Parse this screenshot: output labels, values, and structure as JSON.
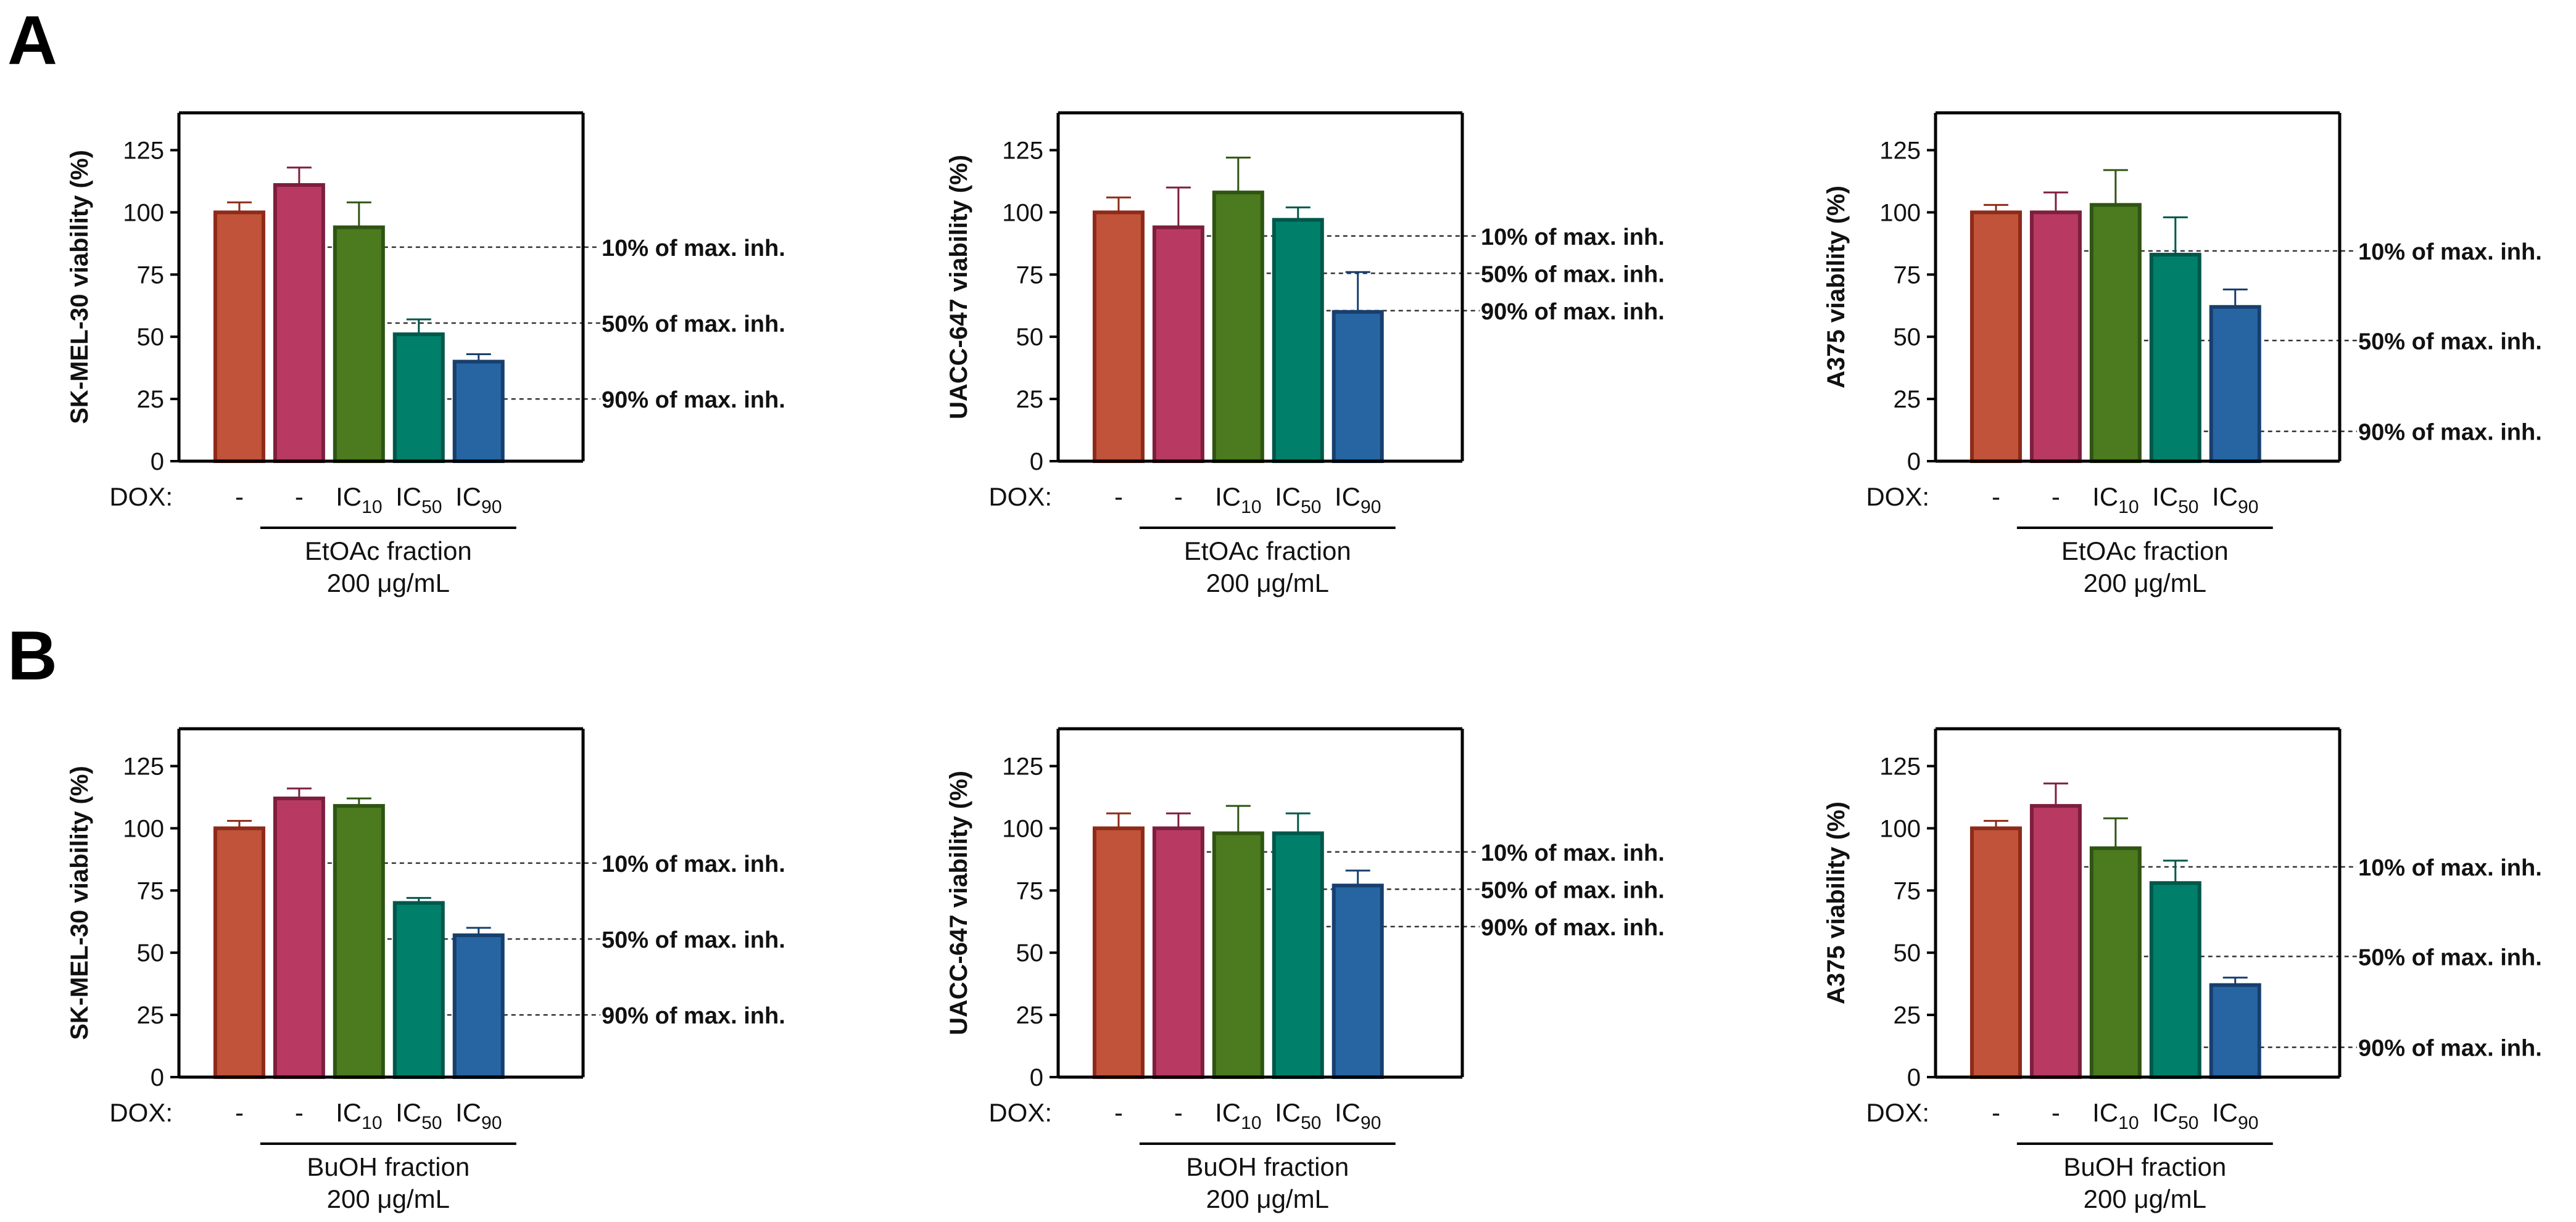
{
  "panel_labels": {
    "a": "A",
    "b": "B"
  },
  "colors": [
    "#C0533A",
    "#B83A62",
    "#4B7A1F",
    "#00806A",
    "#2765A2"
  ],
  "edge_colors": [
    "#8E2A18",
    "#7E1E3E",
    "#2F5412",
    "#00574A",
    "#173F6E"
  ],
  "chart_data": [
    {
      "type": "bar",
      "panel": "A",
      "ylabel": "SK-MEL-30 viability (%)",
      "ylim": [
        0,
        140
      ],
      "yticks": [
        0,
        25,
        50,
        75,
        100,
        125
      ],
      "dox_label": "DOX:",
      "categories": [
        {
          "main": "-",
          "sub": ""
        },
        {
          "main": "-",
          "sub": ""
        },
        {
          "main": "IC",
          "sub": "10"
        },
        {
          "main": "IC",
          "sub": "50"
        },
        {
          "main": "IC",
          "sub": "90"
        }
      ],
      "values": [
        100,
        111,
        94,
        51,
        40
      ],
      "errors": [
        4,
        7,
        10,
        6,
        3
      ],
      "fraction_label": "EtOAc fraction",
      "conc_label": "200 μg/mL",
      "reference_lines": [
        {
          "label": "10% of max. inh.",
          "value": 86,
          "from_bar": 2
        },
        {
          "label": "50% of max. inh.",
          "value": 55.5,
          "from_bar": 3
        },
        {
          "label": "90% of max. inh.",
          "value": 25,
          "from_bar": 4
        }
      ]
    },
    {
      "type": "bar",
      "panel": "A",
      "ylabel": "UACC-647 viability (%)",
      "ylim": [
        0,
        140
      ],
      "yticks": [
        0,
        25,
        50,
        75,
        100,
        125
      ],
      "dox_label": "DOX:",
      "categories": [
        {
          "main": "-",
          "sub": ""
        },
        {
          "main": "-",
          "sub": ""
        },
        {
          "main": "IC",
          "sub": "10"
        },
        {
          "main": "IC",
          "sub": "50"
        },
        {
          "main": "IC",
          "sub": "90"
        }
      ],
      "values": [
        100,
        94,
        108,
        97,
        60
      ],
      "errors": [
        6,
        16,
        14,
        5,
        16
      ],
      "fraction_label": "EtOAc fraction",
      "conc_label": "200 μg/mL",
      "reference_lines": [
        {
          "label": "10% of max. inh.",
          "value": 90.5,
          "from_bar": 2
        },
        {
          "label": "50% of max. inh.",
          "value": 75.5,
          "from_bar": 3
        },
        {
          "label": "90% of max. inh.",
          "value": 60.5,
          "from_bar": 4
        }
      ]
    },
    {
      "type": "bar",
      "panel": "A",
      "ylabel": "A375 viability (%)",
      "ylim": [
        0,
        140
      ],
      "yticks": [
        0,
        25,
        50,
        75,
        100,
        125
      ],
      "dox_label": "DOX:",
      "categories": [
        {
          "main": "-",
          "sub": ""
        },
        {
          "main": "-",
          "sub": ""
        },
        {
          "main": "IC",
          "sub": "10"
        },
        {
          "main": "IC",
          "sub": "50"
        },
        {
          "main": "IC",
          "sub": "90"
        }
      ],
      "values": [
        100,
        100,
        103,
        83,
        62
      ],
      "errors": [
        3,
        8,
        14,
        15,
        7
      ],
      "fraction_label": "EtOAc fraction",
      "conc_label": "200 μg/mL",
      "reference_lines": [
        {
          "label": "10% of max. inh.",
          "value": 84.5,
          "from_bar": 2
        },
        {
          "label": "50% of max. inh.",
          "value": 48.5,
          "from_bar": 3
        },
        {
          "label": "90% of max. inh.",
          "value": 12,
          "from_bar": 4
        }
      ]
    },
    {
      "type": "bar",
      "panel": "B",
      "ylabel": "SK-MEL-30 viability (%)",
      "ylim": [
        0,
        140
      ],
      "yticks": [
        0,
        25,
        50,
        75,
        100,
        125
      ],
      "dox_label": "DOX:",
      "categories": [
        {
          "main": "-",
          "sub": ""
        },
        {
          "main": "-",
          "sub": ""
        },
        {
          "main": "IC",
          "sub": "10"
        },
        {
          "main": "IC",
          "sub": "50"
        },
        {
          "main": "IC",
          "sub": "90"
        }
      ],
      "values": [
        100,
        112,
        109,
        70,
        57
      ],
      "errors": [
        3,
        4,
        3,
        2,
        3
      ],
      "fraction_label": "BuOH fraction",
      "conc_label": "200 μg/mL",
      "reference_lines": [
        {
          "label": "10% of max. inh.",
          "value": 86,
          "from_bar": 2
        },
        {
          "label": "50% of max. inh.",
          "value": 55.5,
          "from_bar": 3
        },
        {
          "label": "90% of max. inh.",
          "value": 25,
          "from_bar": 4
        }
      ]
    },
    {
      "type": "bar",
      "panel": "B",
      "ylabel": "UACC-647 viability (%)",
      "ylim": [
        0,
        140
      ],
      "yticks": [
        0,
        25,
        50,
        75,
        100,
        125
      ],
      "dox_label": "DOX:",
      "categories": [
        {
          "main": "-",
          "sub": ""
        },
        {
          "main": "-",
          "sub": ""
        },
        {
          "main": "IC",
          "sub": "10"
        },
        {
          "main": "IC",
          "sub": "50"
        },
        {
          "main": "IC",
          "sub": "90"
        }
      ],
      "values": [
        100,
        100,
        98,
        98,
        77
      ],
      "errors": [
        6,
        6,
        11,
        8,
        6
      ],
      "fraction_label": "BuOH fraction",
      "conc_label": "200 μg/mL",
      "reference_lines": [
        {
          "label": "10% of max. inh.",
          "value": 90.5,
          "from_bar": 2
        },
        {
          "label": "50% of max. inh.",
          "value": 75.5,
          "from_bar": 3
        },
        {
          "label": "90% of max. inh.",
          "value": 60.5,
          "from_bar": 4
        }
      ]
    },
    {
      "type": "bar",
      "panel": "B",
      "ylabel": "A375 viability (%)",
      "ylim": [
        0,
        140
      ],
      "yticks": [
        0,
        25,
        50,
        75,
        100,
        125
      ],
      "dox_label": "DOX:",
      "categories": [
        {
          "main": "-",
          "sub": ""
        },
        {
          "main": "-",
          "sub": ""
        },
        {
          "main": "IC",
          "sub": "10"
        },
        {
          "main": "IC",
          "sub": "50"
        },
        {
          "main": "IC",
          "sub": "90"
        }
      ],
      "values": [
        100,
        109,
        92,
        78,
        37
      ],
      "errors": [
        3,
        9,
        12,
        9,
        3
      ],
      "fraction_label": "BuOH fraction",
      "conc_label": "200 μg/mL",
      "reference_lines": [
        {
          "label": "10% of max. inh.",
          "value": 84.5,
          "from_bar": 2
        },
        {
          "label": "50% of max. inh.",
          "value": 48.5,
          "from_bar": 3
        },
        {
          "label": "90% of max. inh.",
          "value": 12,
          "from_bar": 4
        }
      ]
    }
  ]
}
